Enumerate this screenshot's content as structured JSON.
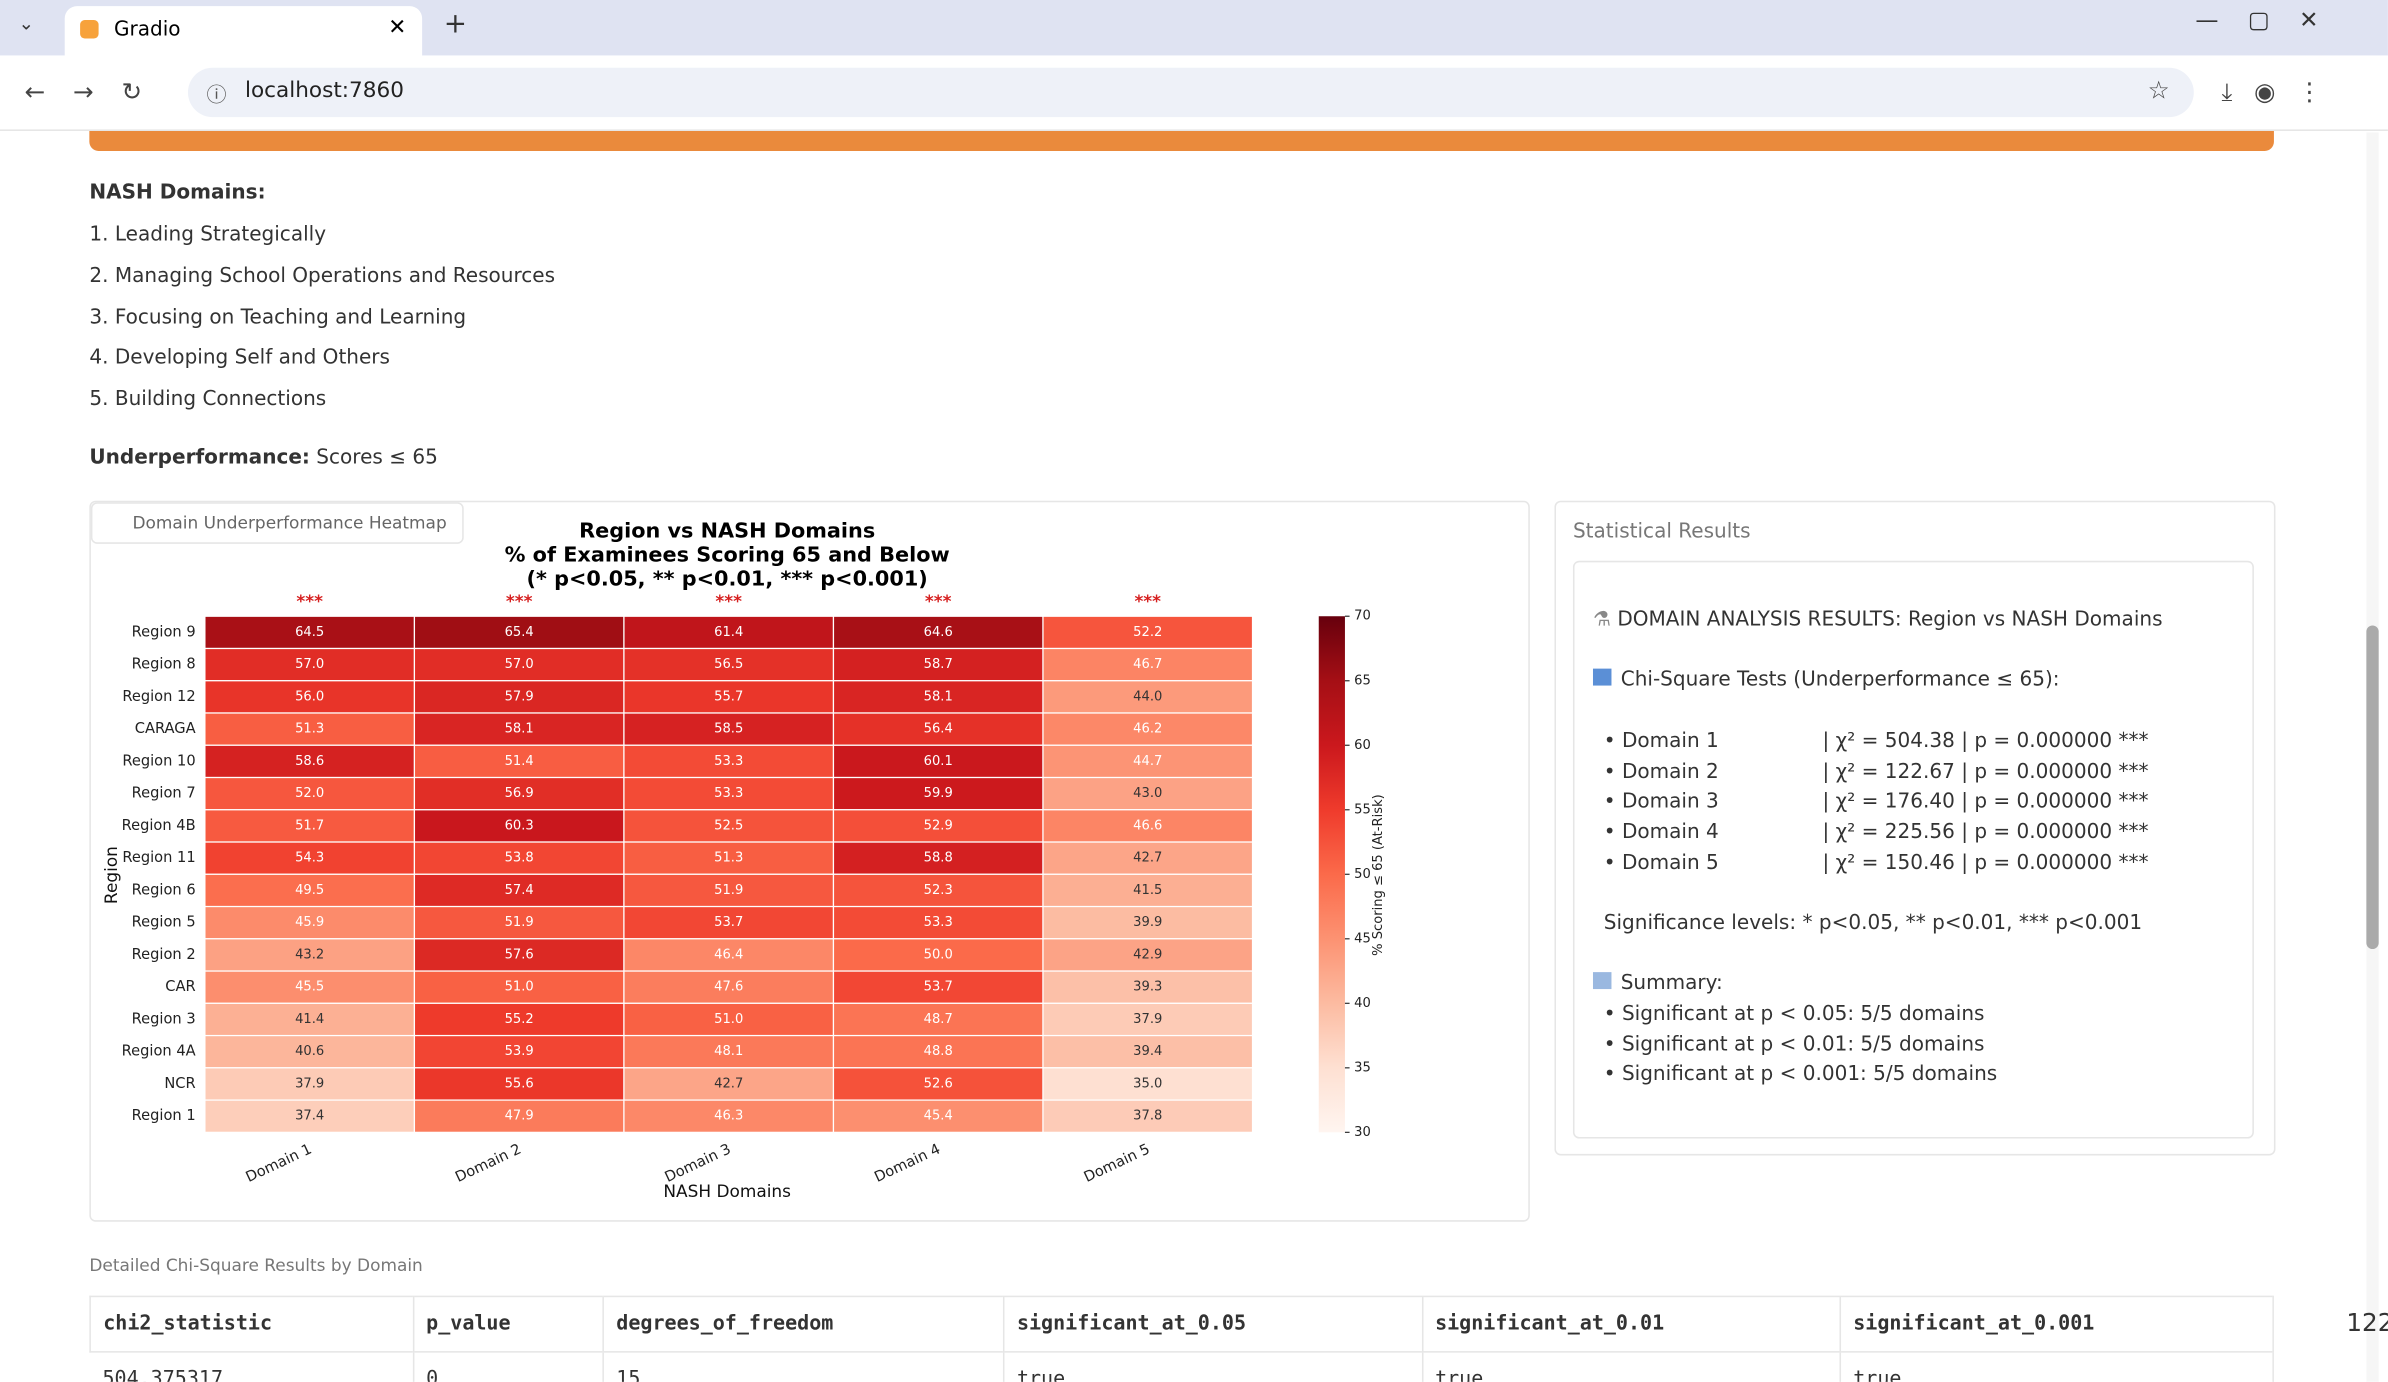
{
  "browser": {
    "tab_title": "Gradio",
    "url": "localhost:7860"
  },
  "page": {
    "domains_heading": "NASH Domains:",
    "domains": [
      "1. Leading Strategically",
      "2. Managing School Operations and Resources",
      "3. Focusing on Teaching and Learning",
      "4. Developing Self and Others",
      "5. Building Connections"
    ],
    "underperf_label": "Underperformance:",
    "underperf_text": "Scores ≤ 65"
  },
  "chart_data": {
    "type": "heatmap",
    "panel_label": "Domain Underperformance Heatmap",
    "title": [
      "Region vs NASH Domains",
      "% of Examinees Scoring 65 and Below",
      "(* p<0.05, ** p<0.01, *** p<0.001)"
    ],
    "xlabel": "NASH Domains",
    "ylabel": "Region",
    "categories": [
      "Domain 1",
      "Domain 2",
      "Domain 3",
      "Domain 4",
      "Domain 5"
    ],
    "significance": [
      "***",
      "***",
      "***",
      "***",
      "***"
    ],
    "rows": [
      "Region 9",
      "Region 8",
      "Region 12",
      "CARAGA",
      "Region 10",
      "Region 7",
      "Region 4B",
      "Region 11",
      "Region 6",
      "Region 5",
      "Region 2",
      "CAR",
      "Region 3",
      "Region 4A",
      "NCR",
      "Region 1"
    ],
    "values": [
      [
        64.5,
        65.4,
        61.4,
        64.6,
        52.2
      ],
      [
        57,
        57,
        56.5,
        58.7,
        46.7
      ],
      [
        56,
        57.9,
        55.7,
        58.1,
        44
      ],
      [
        51.3,
        58.1,
        58.5,
        56.4,
        46.2
      ],
      [
        58.6,
        51.4,
        53.3,
        60.1,
        44.7
      ],
      [
        52,
        56.9,
        53.3,
        59.9,
        43
      ],
      [
        51.7,
        60.3,
        52.5,
        52.9,
        46.6
      ],
      [
        54.3,
        53.8,
        51.3,
        58.8,
        42.7
      ],
      [
        49.5,
        57.4,
        51.9,
        52.3,
        41.5
      ],
      [
        45.9,
        51.9,
        53.7,
        53.3,
        39.9
      ],
      [
        43.2,
        57.6,
        46.4,
        50,
        42.9
      ],
      [
        45.5,
        51,
        47.6,
        53.7,
        39.3
      ],
      [
        41.4,
        55.2,
        51,
        48.7,
        37.9
      ],
      [
        40.6,
        53.9,
        48.1,
        48.8,
        39.4
      ],
      [
        37.9,
        55.6,
        42.7,
        52.6,
        35
      ],
      [
        37.4,
        47.9,
        46.3,
        45.4,
        37.8
      ]
    ],
    "value_labels": [
      [
        "64.5",
        "65.4",
        "61.4",
        "64.6",
        "52.2"
      ],
      [
        "57.0",
        "57.0",
        "56.5",
        "58.7",
        "46.7"
      ],
      [
        "56.0",
        "57.9",
        "55.7",
        "58.1",
        "44.0"
      ],
      [
        "51.3",
        "58.1",
        "58.5",
        "56.4",
        "46.2"
      ],
      [
        "58.6",
        "51.4",
        "53.3",
        "60.1",
        "44.7"
      ],
      [
        "52.0",
        "56.9",
        "53.3",
        "59.9",
        "43.0"
      ],
      [
        "51.7",
        "60.3",
        "52.5",
        "52.9",
        "46.6"
      ],
      [
        "54.3",
        "53.8",
        "51.3",
        "58.8",
        "42.7"
      ],
      [
        "49.5",
        "57.4",
        "51.9",
        "52.3",
        "41.5"
      ],
      [
        "45.9",
        "51.9",
        "53.7",
        "53.3",
        "39.9"
      ],
      [
        "43.2",
        "57.6",
        "46.4",
        "50.0",
        "42.9"
      ],
      [
        "45.5",
        "51.0",
        "47.6",
        "53.7",
        "39.3"
      ],
      [
        "41.4",
        "55.2",
        "51.0",
        "48.7",
        "37.9"
      ],
      [
        "40.6",
        "53.9",
        "48.1",
        "48.8",
        "39.4"
      ],
      [
        "37.9",
        "55.6",
        "42.7",
        "52.6",
        "35.0"
      ],
      [
        "37.4",
        "47.9",
        "46.3",
        "45.4",
        "37.8"
      ]
    ],
    "colormap": "Reds",
    "colorbar": {
      "label": "% Scoring ≤ 65 (At-Risk)",
      "lim": [
        30,
        70
      ],
      "ticks": [
        30,
        35,
        40,
        45,
        50,
        55,
        60,
        65,
        70
      ]
    }
  },
  "stats": {
    "panel_label": "Statistical Results",
    "heading": "DOMAIN ANALYSIS RESULTS: Region vs NASH Domains",
    "chi_heading": "Chi-Square Tests (Underperformance ≤ 65):",
    "tests": [
      {
        "name": "• Domain 1",
        "result": "| χ² = 504.38 | p = 0.000000 ***"
      },
      {
        "name": "• Domain 2",
        "result": "| χ² = 122.67 | p = 0.000000 ***"
      },
      {
        "name": "• Domain 3",
        "result": "| χ² = 176.40 | p = 0.000000 ***"
      },
      {
        "name": "• Domain 4",
        "result": "| χ² = 225.56 | p = 0.000000 ***"
      },
      {
        "name": "• Domain 5",
        "result": "| χ² = 150.46 | p = 0.000000 ***"
      }
    ],
    "significance_levels": "Significance levels: * p<0.05, ** p<0.01, *** p<0.001",
    "summary_heading": "Summary:",
    "summary": [
      "• Significant at p < 0.05: 5/5 domains",
      "• Significant at p < 0.01: 5/5 domains",
      "• Significant at p < 0.001: 5/5 domains"
    ]
  },
  "table": {
    "caption": "Detailed Chi-Square Results by Domain",
    "columns": [
      "chi2_statistic",
      "p_value",
      "degrees_of_freedom",
      "significant_at_0.05",
      "significant_at_0.01",
      "significant_at_0.001"
    ],
    "rows": [
      [
        "504.375317",
        "0",
        "15",
        "true",
        "true",
        "true"
      ]
    ]
  },
  "edge_number": "122"
}
